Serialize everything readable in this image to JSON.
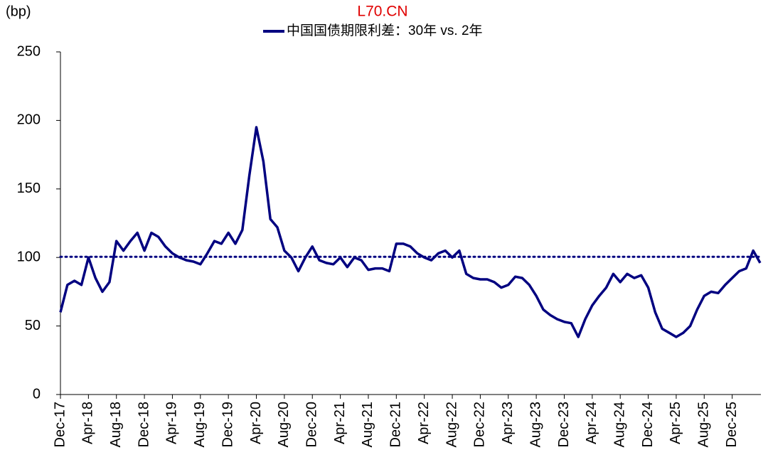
{
  "chart_data": {
    "type": "line",
    "watermark": "L70.CN",
    "y_label": "(bp)",
    "categories": [
      "Dec-17",
      null,
      null,
      null,
      "Apr-18",
      null,
      null,
      null,
      "Aug-18",
      null,
      null,
      null,
      "Dec-18",
      null,
      null,
      null,
      "Apr-19",
      null,
      null,
      null,
      "Aug-19",
      null,
      null,
      null,
      "Dec-19",
      null,
      null,
      null,
      "Apr-20",
      null,
      null,
      null,
      "Aug-20",
      null,
      null,
      null,
      "Dec-20",
      null,
      null,
      null,
      "Apr-21",
      null,
      null,
      null,
      "Aug-21",
      null,
      null,
      null,
      "Dec-21",
      null,
      null,
      null,
      "Apr-22",
      null,
      null,
      null,
      "Aug-22",
      null,
      null,
      null,
      "Dec-22",
      null,
      null,
      null,
      "Apr-23",
      null,
      null,
      null,
      "Aug-23",
      null,
      null,
      null,
      "Dec-23",
      null,
      null,
      null,
      "Apr-24",
      null,
      null,
      null,
      "Aug-24",
      null,
      null,
      null,
      "Dec-24",
      null,
      null,
      null,
      "Apr-25",
      null,
      null,
      null,
      "Aug-25",
      null,
      null,
      null,
      "Dec-25",
      null,
      null,
      null,
      null
    ],
    "series": [
      {
        "name": "中国国债期限利差：30年 vs. 2年",
        "color": "#000080",
        "values": [
          60,
          80,
          83,
          80,
          100,
          85,
          75,
          82,
          112,
          105,
          112,
          118,
          105,
          118,
          115,
          108,
          103,
          100,
          98,
          97,
          95,
          103,
          112,
          110,
          118,
          110,
          120,
          160,
          195,
          170,
          128,
          122,
          105,
          100,
          90,
          100,
          108,
          98,
          96,
          95,
          100,
          93,
          100,
          98,
          91,
          92,
          92,
          90,
          110,
          110,
          108,
          103,
          100,
          98,
          103,
          105,
          100,
          105,
          88,
          85,
          84,
          84,
          82,
          78,
          80,
          86,
          85,
          80,
          72,
          62,
          58,
          55,
          53,
          52,
          42,
          55,
          65,
          72,
          78,
          88,
          82,
          88,
          85,
          87,
          78,
          60,
          48,
          45,
          42,
          45,
          50,
          62,
          72,
          75,
          74,
          80,
          85,
          90,
          92,
          105,
          96
        ]
      }
    ],
    "reference_line": 100.5,
    "reference_color": "#000080",
    "ylim": [
      0,
      250
    ],
    "yticks": [
      0,
      50,
      100,
      150,
      200,
      250
    ],
    "grid": false
  }
}
